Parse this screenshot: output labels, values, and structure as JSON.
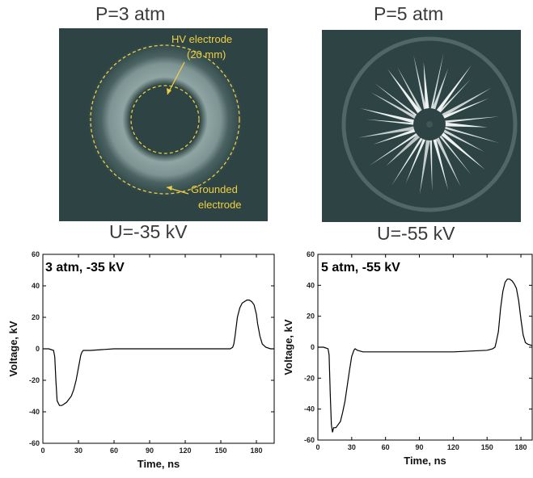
{
  "photos": {
    "left": {
      "top_label": "P=3 atm",
      "bottom_label": "U=-35 kV",
      "annotations": {
        "hv_line1": "HV electrode",
        "hv_line2": "(20 mm)",
        "gnd_line1": "Grounded",
        "gnd_line2": "electrode"
      }
    },
    "right": {
      "top_label": "P=5 atm",
      "bottom_label": "U=-55 kV"
    }
  },
  "colors": {
    "photo_bg": "#2e4444",
    "annotation": "#f0d040",
    "trace": "#000000"
  },
  "chart_data": [
    {
      "type": "line",
      "title": "3 atm, -35 kV",
      "xlabel": "Time, ns",
      "ylabel": "Voltage, kV",
      "xlim": [
        0,
        195
      ],
      "ylim": [
        -60,
        60
      ],
      "xticks": [
        "0",
        "30",
        "60",
        "90",
        "120",
        "150",
        "180"
      ],
      "yticks": [
        "-60",
        "-40",
        "-20",
        "0",
        "20",
        "40",
        "60"
      ],
      "series": [
        {
          "x": [
            0,
            5,
            9,
            10,
            11,
            12,
            14,
            16,
            18,
            20,
            22,
            24,
            26,
            28,
            30,
            32,
            33,
            34,
            36,
            40,
            60,
            90,
            120,
            150,
            158,
            160,
            161,
            162,
            164,
            166,
            168,
            170,
            172,
            174,
            176,
            178,
            180,
            181,
            183,
            185,
            188,
            192,
            195
          ],
          "y": [
            0,
            0,
            -1,
            -5,
            -20,
            -33,
            -36,
            -36,
            -35,
            -34,
            -32,
            -30,
            -26,
            -20,
            -12,
            -4,
            -2,
            -1,
            -1,
            -1,
            0,
            0,
            0,
            0,
            0,
            1,
            3,
            8,
            20,
            26,
            29,
            30,
            31,
            31,
            30,
            28,
            22,
            16,
            8,
            3,
            1,
            0,
            0
          ]
        }
      ]
    },
    {
      "type": "line",
      "title": "5 atm, -55 kV",
      "xlabel": "Time, ns",
      "ylabel": "Voltage, kV",
      "xlim": [
        0,
        190
      ],
      "ylim": [
        -60,
        60
      ],
      "xticks": [
        "0",
        "30",
        "60",
        "90",
        "120",
        "150",
        "180"
      ],
      "yticks": [
        "-60",
        "-40",
        "-20",
        "0",
        "20",
        "40",
        "60"
      ],
      "series": [
        {
          "x": [
            0,
            5,
            9,
            10,
            11,
            12,
            13,
            14,
            16,
            18,
            20,
            22,
            24,
            26,
            28,
            30,
            32,
            33,
            35,
            40,
            60,
            90,
            120,
            150,
            155,
            157,
            158,
            160,
            162,
            164,
            166,
            168,
            170,
            172,
            174,
            176,
            178,
            180,
            182,
            184,
            186,
            190
          ],
          "y": [
            0,
            0,
            -1,
            -5,
            -30,
            -50,
            -55,
            -52,
            -52,
            -50,
            -48,
            -42,
            -35,
            -25,
            -15,
            -6,
            -2,
            -1,
            -2,
            -3,
            -3,
            -3,
            -3,
            -2,
            -1,
            0,
            3,
            10,
            25,
            36,
            42,
            44,
            44,
            43,
            41,
            38,
            30,
            18,
            8,
            3,
            2,
            1
          ]
        }
      ]
    }
  ]
}
